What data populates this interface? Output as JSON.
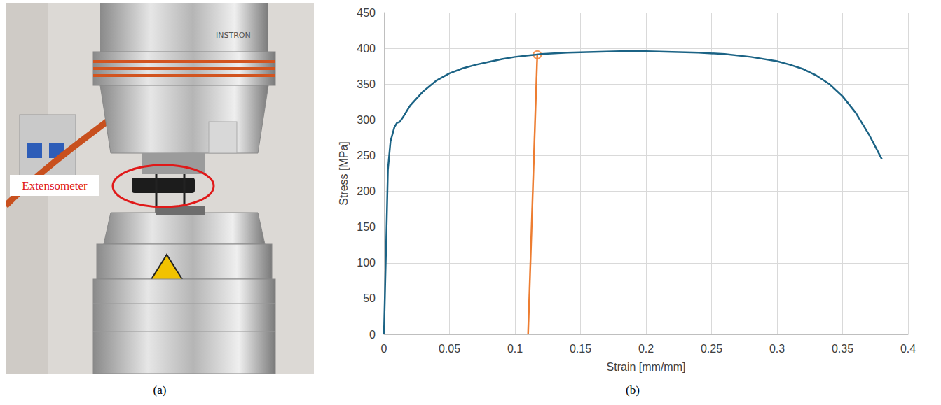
{
  "panel_labels": [
    "(a)",
    "(b)"
  ],
  "photo": {
    "annotation": "Extensometer",
    "brand": "INSTRON"
  },
  "chart_data": {
    "type": "line",
    "x_label": "Strain [mm/mm]",
    "y_label": "Stress [MPa]",
    "xlim": [
      0,
      0.4
    ],
    "xticks": [
      0,
      0.05,
      0.1,
      0.15,
      0.2,
      0.25,
      0.3,
      0.35,
      0.4
    ],
    "ylim": [
      0,
      450
    ],
    "yticks": [
      0,
      50,
      100,
      150,
      200,
      250,
      300,
      350,
      400,
      450
    ],
    "grid": true,
    "series": [
      {
        "type": "line",
        "color": "#1b6385",
        "marker": "none",
        "line_style": "solid",
        "x": [
          0,
          0.002,
          0.003,
          0.005,
          0.008,
          0.01,
          0.012,
          0.015,
          0.02,
          0.03,
          0.04,
          0.05,
          0.06,
          0.07,
          0.08,
          0.09,
          0.1,
          0.11,
          0.12,
          0.14,
          0.16,
          0.18,
          0.2,
          0.22,
          0.24,
          0.26,
          0.28,
          0.3,
          0.31,
          0.32,
          0.33,
          0.34,
          0.35,
          0.36,
          0.37,
          0.38
        ],
        "values": [
          0,
          150,
          230,
          270,
          290,
          296,
          297,
          305,
          320,
          340,
          355,
          365,
          372,
          377,
          381,
          385,
          388,
          390,
          392,
          394,
          395,
          396,
          396,
          395,
          394,
          392,
          388,
          382,
          377,
          371,
          362,
          350,
          333,
          310,
          280,
          245
        ]
      },
      {
        "type": "line",
        "color": "#ed7d31",
        "marker": "none",
        "line_style": "solid",
        "x": [
          0.11,
          0.117
        ],
        "values": [
          0,
          391
        ]
      },
      {
        "type": "scatter",
        "color": "#ed7d31",
        "marker": "open_circle",
        "x": [
          0.117
        ],
        "values": [
          391
        ]
      }
    ]
  }
}
